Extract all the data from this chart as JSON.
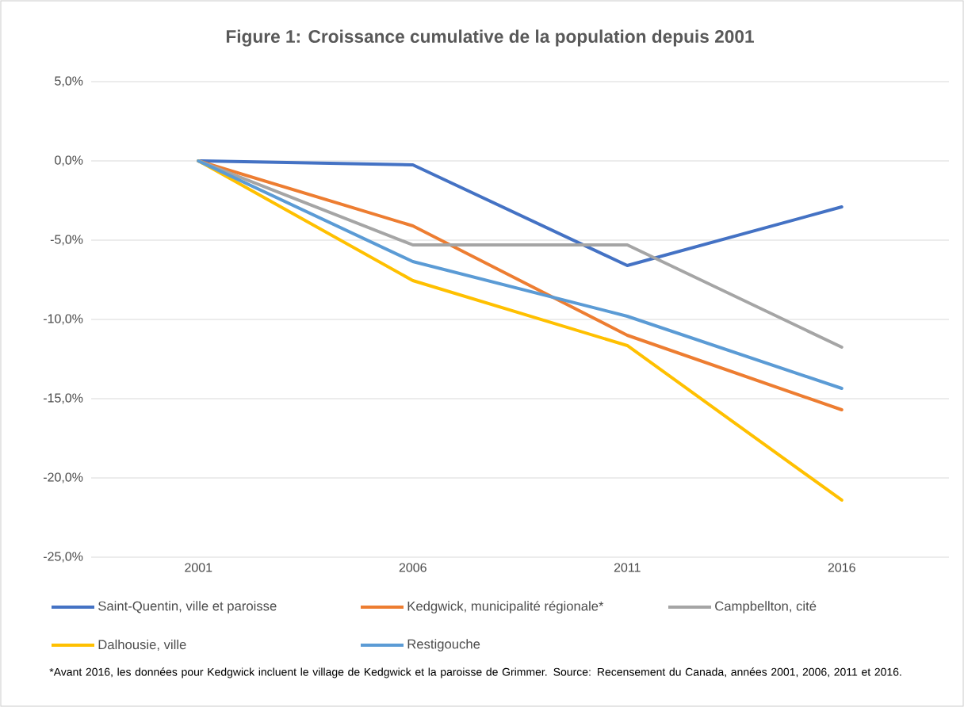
{
  "chart_data": {
    "type": "line",
    "title": "Figure 1: Croissance cumulative de la population depuis 2001",
    "categories": [
      "2001",
      "2006",
      "2011",
      "2016"
    ],
    "series": [
      {
        "name": "Saint-Quentin, ville et paroisse",
        "color": "#4472c4",
        "values": [
          0,
          -0.25,
          -6.6,
          -2.9
        ]
      },
      {
        "name": "Kedgwick, municipalité régionale*",
        "color": "#ed7d31",
        "values": [
          0,
          -4.1,
          -11.0,
          -15.7
        ]
      },
      {
        "name": "Campbellton, cité",
        "color": "#a5a5a5",
        "values": [
          0,
          -5.3,
          -5.3,
          -11.75
        ]
      },
      {
        "name": "Dalhousie, ville",
        "color": "#ffc000",
        "values": [
          0,
          -7.55,
          -11.65,
          -21.4
        ]
      },
      {
        "name": "Restigouche",
        "color": "#5b9bd5",
        "values": [
          0,
          -6.35,
          -9.8,
          -14.35
        ]
      }
    ],
    "ylim": [
      -25,
      5
    ],
    "yticks": [
      {
        "value": -25,
        "label": "-25,0%"
      },
      {
        "value": -20,
        "label": "-20,0%"
      },
      {
        "value": -15,
        "label": "-15,0%"
      },
      {
        "value": -10,
        "label": "-10,0%"
      },
      {
        "value": -5,
        "label": "-5,0%"
      },
      {
        "value": 0,
        "label": "0,0%"
      },
      {
        "value": 5,
        "label": "5,0%"
      }
    ],
    "grid": "y",
    "legend": "bottom",
    "marker": "none",
    "line_style": "solid",
    "annotations": [
      "*Avant 2016, les données pour Kedgwick incluent le village de Kedgwick et la paroisse de Grimmer. Source: Recensement du Canada, années 2001, 2006, 2011 et 2016."
    ]
  }
}
